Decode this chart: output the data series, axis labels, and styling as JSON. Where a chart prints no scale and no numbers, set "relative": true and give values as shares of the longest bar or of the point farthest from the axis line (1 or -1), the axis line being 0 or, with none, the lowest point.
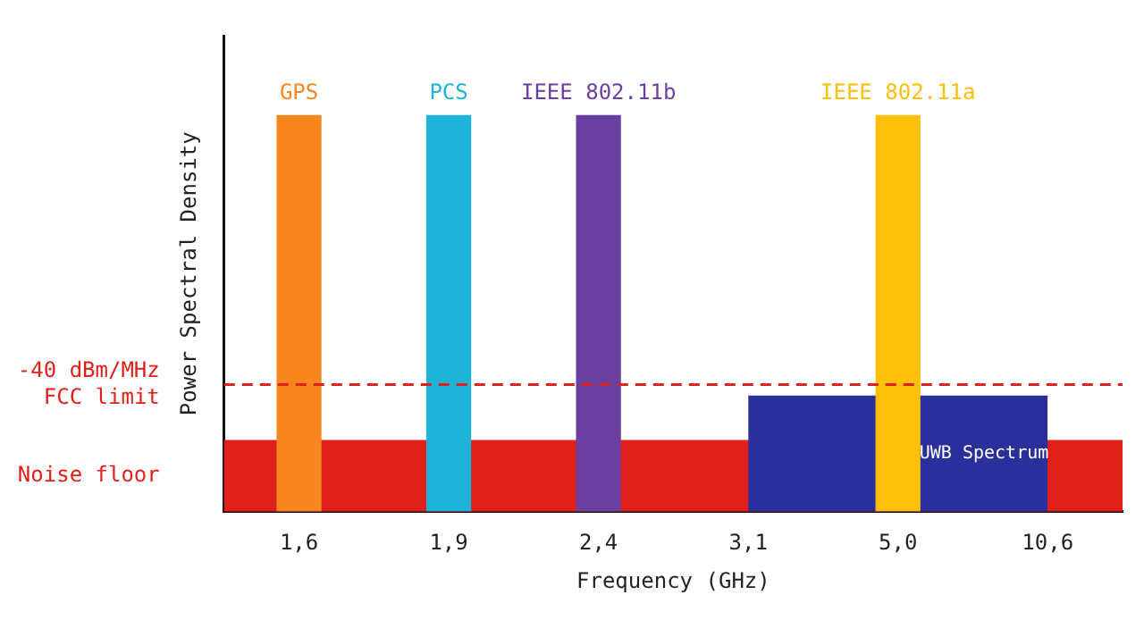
{
  "chart_data": {
    "type": "bar",
    "relative": true,
    "ylabel": "Power Spectral Density",
    "xlabel": "Frequency (GHz)",
    "categories": [
      "1,6",
      "1,9",
      "2,4",
      "3,1",
      "5,0",
      "10,6"
    ],
    "series": [
      {
        "type": "area",
        "name": "UWB Spectrum",
        "x": [
          "3,1",
          "10,6"
        ],
        "values": [
          0.29,
          0.29
        ],
        "color": "#2a2f9c"
      },
      {
        "type": "bar",
        "values": [
          1,
          1,
          1,
          null,
          1,
          null
        ],
        "colors": [
          "#f7861e",
          "#1fb3d9",
          "#6b3fa0",
          null,
          "#fcc00a",
          null
        ]
      }
    ],
    "annotations": [
      {
        "text": "GPS",
        "x": "1,6",
        "y": 1
      },
      {
        "text": "PCS",
        "x": "1,9",
        "y": 1
      },
      {
        "text": "IEEE 802.11b",
        "x": "2,4",
        "y": 1
      },
      {
        "text": "IEEE 802.11a",
        "x": "5,0",
        "y": 1
      }
    ],
    "ref_lines": [
      {
        "axis": "y",
        "value": 0.32,
        "label": "-40 dBm/MHz\nFCC limit",
        "color": "#e0201b",
        "line_style": "dashed"
      }
    ],
    "bands": [
      {
        "axis": "y",
        "from": 0,
        "to": 0.18,
        "label": "Noise floor",
        "color": "#e0201b"
      }
    ],
    "grid": false,
    "legend": false
  }
}
